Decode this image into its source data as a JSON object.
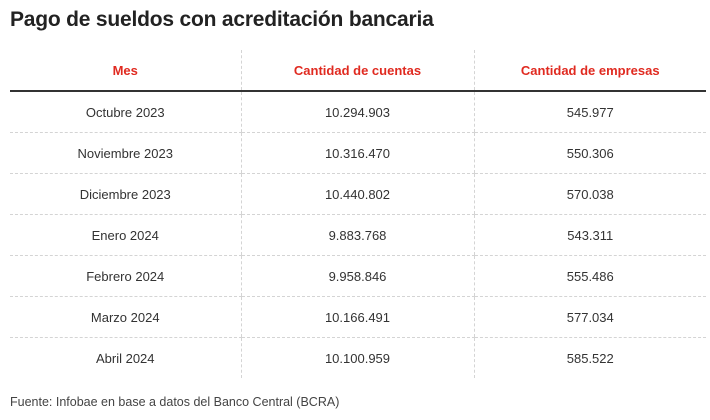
{
  "title": "Pago de sueldos con acreditación bancaria",
  "columns": [
    "Mes",
    "Cantidad de cuentas",
    "Cantidad de empresas"
  ],
  "rows": [
    [
      "Octubre 2023",
      "10.294.903",
      "545.977"
    ],
    [
      "Noviembre 2023",
      "10.316.470",
      "550.306"
    ],
    [
      "Diciembre 2023",
      "10.440.802",
      "570.038"
    ],
    [
      "Enero 2024",
      "9.883.768",
      "543.311"
    ],
    [
      "Febrero 2024",
      "9.958.846",
      "555.486"
    ],
    [
      "Marzo 2024",
      "10.166.491",
      "577.034"
    ],
    [
      "Abril 2024",
      "10.100.959",
      "585.522"
    ]
  ],
  "source": "Fuente: Infobae en base a datos del Banco Central (BCRA)",
  "colors": {
    "header_text": "#e02a20",
    "text": "#333333",
    "divider": "#d4d4d4"
  }
}
